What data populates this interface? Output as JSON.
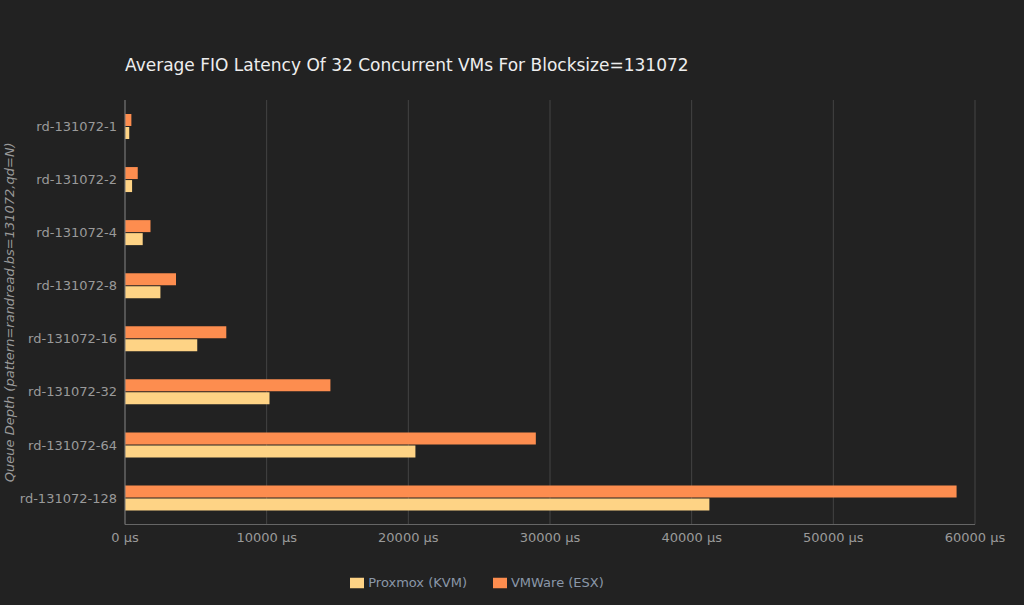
{
  "chart_data": {
    "type": "bar",
    "title": "Average FIO Latency Of 32 Concurrent VMs For Blocksize=131072",
    "y_label": "Queue Depth (pattern=randread,bs=131072,qd=N)",
    "orientation": "horizontal",
    "categories": [
      "rd-131072-1",
      "rd-131072-2",
      "rd-131072-4",
      "rd-131072-8",
      "rd-131072-16",
      "rd-131072-32",
      "rd-131072-64",
      "rd-131072-128"
    ],
    "series": [
      {
        "name": "VMWare (ESX)",
        "color": "#fd8d4f",
        "values": [
          450,
          900,
          1800,
          3600,
          7150,
          14500,
          29000,
          58700
        ]
      },
      {
        "name": "Proxmox (KVM)",
        "color": "#fed385",
        "values": [
          300,
          500,
          1250,
          2500,
          5100,
          10200,
          20500,
          41250
        ]
      }
    ],
    "xlim": [
      0,
      60000
    ],
    "xticks": [
      {
        "value": 0,
        "label": "0 µs"
      },
      {
        "value": 10000,
        "label": "10000 µs"
      },
      {
        "value": 20000,
        "label": "20000 µs"
      },
      {
        "value": 30000,
        "label": "30000 µs"
      },
      {
        "value": 40000,
        "label": "40000 µs"
      },
      {
        "value": 50000,
        "label": "50000 µs"
      },
      {
        "value": 60000,
        "label": "60000 µs"
      }
    ],
    "grid": true,
    "legend": "bottom"
  }
}
